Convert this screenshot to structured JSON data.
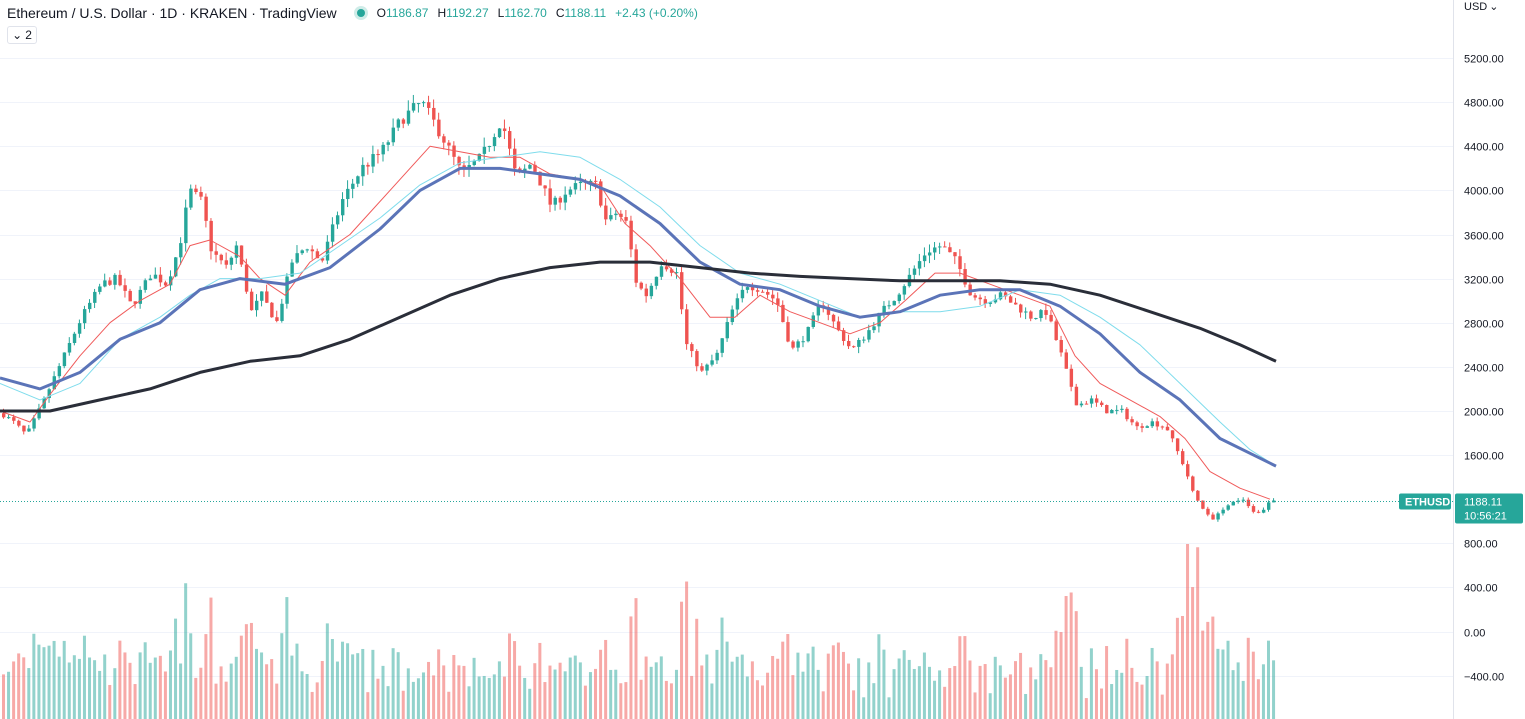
{
  "header": {
    "symbol": "Ethereum / U.S. Dollar · 1D · KRAKEN · TradingView",
    "o_label": "O",
    "o_value": "1186.87",
    "h_label": "H",
    "h_value": "1192.27",
    "l_label": "L",
    "l_value": "1162.70",
    "c_label": "C",
    "c_value": "1188.11",
    "change": "+2.43 (+0.20%)"
  },
  "controls": {
    "collapse_count": "2",
    "currency": "USD",
    "currency_icon": "chevron-down-icon"
  },
  "colors": {
    "up": "#26a69a",
    "down": "#ef5350",
    "ma_red": "#f05a5a",
    "ma_cyan": "#7fdcec",
    "ma_blue": "#5b74b8",
    "ma_black": "#2a2e39",
    "label_bg": "#26a69a"
  },
  "price_label": {
    "ticker": "ETHUSD",
    "price": "1188.11",
    "countdown": "10:56:21"
  },
  "chart_data": {
    "type": "candlestick",
    "title": "Ethereum / U.S. Dollar · 1D · KRAKEN · TradingView",
    "y_axis": {
      "ticks": [
        5200,
        4800,
        4400,
        4000,
        3600,
        3200,
        2800,
        2400,
        2000,
        1600,
        800,
        400,
        0,
        -400
      ],
      "tick_labels": [
        "5200.00",
        "4800.00",
        "4400.00",
        "4000.00",
        "3600.00",
        "3200.00",
        "2800.00",
        "2400.00",
        "2000.00",
        "1600.00",
        "800.00",
        "400.00",
        "0.00",
        "−400.00"
      ],
      "range": [
        -500,
        5450
      ]
    },
    "last_price": 1188.11,
    "price_path": [
      [
        0,
        1980
      ],
      [
        12,
        1900
      ],
      [
        25,
        1780
      ],
      [
        40,
        2050
      ],
      [
        60,
        2450
      ],
      [
        80,
        2850
      ],
      [
        100,
        3150
      ],
      [
        115,
        3200
      ],
      [
        130,
        2950
      ],
      [
        150,
        3250
      ],
      [
        165,
        3150
      ],
      [
        178,
        3500
      ],
      [
        188,
        4000
      ],
      [
        200,
        3900
      ],
      [
        210,
        3450
      ],
      [
        225,
        3300
      ],
      [
        235,
        3500
      ],
      [
        250,
        2900
      ],
      [
        260,
        3050
      ],
      [
        275,
        2800
      ],
      [
        290,
        3350
      ],
      [
        305,
        3500
      ],
      [
        320,
        3350
      ],
      [
        340,
        3900
      ],
      [
        360,
        4200
      ],
      [
        380,
        4350
      ],
      [
        400,
        4650
      ],
      [
        420,
        4800
      ],
      [
        440,
        4500
      ],
      [
        460,
        4150
      ],
      [
        480,
        4300
      ],
      [
        500,
        4650
      ],
      [
        515,
        4100
      ],
      [
        530,
        4250
      ],
      [
        550,
        3850
      ],
      [
        565,
        4000
      ],
      [
        580,
        4050
      ],
      [
        595,
        4050
      ],
      [
        605,
        3700
      ],
      [
        615,
        3800
      ],
      [
        625,
        3700
      ],
      [
        635,
        3150
      ],
      [
        645,
        3050
      ],
      [
        660,
        3350
      ],
      [
        675,
        3250
      ],
      [
        685,
        2600
      ],
      [
        700,
        2350
      ],
      [
        715,
        2500
      ],
      [
        730,
        2900
      ],
      [
        745,
        3150
      ],
      [
        760,
        3100
      ],
      [
        775,
        3000
      ],
      [
        790,
        2550
      ],
      [
        805,
        2700
      ],
      [
        820,
        3000
      ],
      [
        835,
        2750
      ],
      [
        850,
        2550
      ],
      [
        865,
        2700
      ],
      [
        880,
        2900
      ],
      [
        895,
        3050
      ],
      [
        910,
        3250
      ],
      [
        925,
        3450
      ],
      [
        940,
        3500
      ],
      [
        955,
        3350
      ],
      [
        970,
        3050
      ],
      [
        985,
        3000
      ],
      [
        1000,
        3050
      ],
      [
        1015,
        2950
      ],
      [
        1030,
        2850
      ],
      [
        1045,
        2900
      ],
      [
        1060,
        2500
      ],
      [
        1075,
        2050
      ],
      [
        1090,
        2100
      ],
      [
        1105,
        2000
      ],
      [
        1120,
        2000
      ],
      [
        1135,
        1850
      ],
      [
        1150,
        1900
      ],
      [
        1165,
        1850
      ],
      [
        1180,
        1550
      ],
      [
        1195,
        1200
      ],
      [
        1210,
        1000
      ],
      [
        1225,
        1150
      ],
      [
        1240,
        1200
      ],
      [
        1255,
        1050
      ],
      [
        1270,
        1188
      ]
    ],
    "series": [
      {
        "name": "",
        "role": "ma-fast",
        "color": "#f05a5a",
        "points": [
          [
            0,
            2000
          ],
          [
            30,
            1900
          ],
          [
            50,
            2150
          ],
          [
            80,
            2500
          ],
          [
            110,
            2800
          ],
          [
            140,
            3000
          ],
          [
            170,
            3150
          ],
          [
            190,
            3500
          ],
          [
            210,
            3550
          ],
          [
            240,
            3400
          ],
          [
            260,
            3200
          ],
          [
            285,
            3050
          ],
          [
            310,
            3350
          ],
          [
            350,
            3600
          ],
          [
            390,
            4000
          ],
          [
            430,
            4400
          ],
          [
            460,
            4350
          ],
          [
            490,
            4300
          ],
          [
            520,
            4300
          ],
          [
            550,
            4150
          ],
          [
            580,
            4100
          ],
          [
            600,
            4050
          ],
          [
            625,
            3700
          ],
          [
            650,
            3500
          ],
          [
            680,
            3200
          ],
          [
            710,
            2850
          ],
          [
            735,
            2850
          ],
          [
            760,
            3050
          ],
          [
            790,
            2900
          ],
          [
            820,
            2800
          ],
          [
            850,
            2700
          ],
          [
            880,
            2800
          ],
          [
            905,
            3000
          ],
          [
            935,
            3250
          ],
          [
            960,
            3250
          ],
          [
            990,
            3150
          ],
          [
            1020,
            3050
          ],
          [
            1050,
            2950
          ],
          [
            1075,
            2500
          ],
          [
            1100,
            2250
          ],
          [
            1130,
            2100
          ],
          [
            1160,
            1950
          ],
          [
            1185,
            1750
          ],
          [
            1210,
            1450
          ],
          [
            1240,
            1300
          ],
          [
            1270,
            1200
          ]
        ]
      },
      {
        "name": "",
        "role": "ma-cyan",
        "color": "#7fdcec",
        "points": [
          [
            0,
            2250
          ],
          [
            40,
            2100
          ],
          [
            80,
            2250
          ],
          [
            120,
            2650
          ],
          [
            160,
            2850
          ],
          [
            190,
            3050
          ],
          [
            220,
            3200
          ],
          [
            260,
            3200
          ],
          [
            300,
            3250
          ],
          [
            340,
            3500
          ],
          [
            380,
            3750
          ],
          [
            420,
            4050
          ],
          [
            460,
            4250
          ],
          [
            500,
            4300
          ],
          [
            540,
            4350
          ],
          [
            580,
            4300
          ],
          [
            620,
            4100
          ],
          [
            660,
            3850
          ],
          [
            700,
            3500
          ],
          [
            740,
            3250
          ],
          [
            780,
            3150
          ],
          [
            820,
            3000
          ],
          [
            860,
            2850
          ],
          [
            900,
            2900
          ],
          [
            940,
            2900
          ],
          [
            980,
            2950
          ],
          [
            1020,
            3100
          ],
          [
            1060,
            3050
          ],
          [
            1100,
            2850
          ],
          [
            1140,
            2600
          ],
          [
            1180,
            2250
          ],
          [
            1220,
            1900
          ],
          [
            1250,
            1650
          ],
          [
            1276,
            1500
          ]
        ]
      },
      {
        "name": "",
        "role": "ma-blue",
        "color": "#5b74b8",
        "points": [
          [
            0,
            2300
          ],
          [
            40,
            2200
          ],
          [
            80,
            2350
          ],
          [
            120,
            2650
          ],
          [
            160,
            2800
          ],
          [
            200,
            3100
          ],
          [
            240,
            3200
          ],
          [
            285,
            3150
          ],
          [
            330,
            3300
          ],
          [
            380,
            3650
          ],
          [
            420,
            4000
          ],
          [
            460,
            4200
          ],
          [
            500,
            4200
          ],
          [
            540,
            4150
          ],
          [
            580,
            4100
          ],
          [
            620,
            3950
          ],
          [
            660,
            3700
          ],
          [
            700,
            3350
          ],
          [
            740,
            3150
          ],
          [
            780,
            3100
          ],
          [
            820,
            2950
          ],
          [
            860,
            2850
          ],
          [
            900,
            2900
          ],
          [
            940,
            3050
          ],
          [
            980,
            3100
          ],
          [
            1020,
            3100
          ],
          [
            1060,
            2950
          ],
          [
            1100,
            2700
          ],
          [
            1140,
            2350
          ],
          [
            1180,
            2100
          ],
          [
            1220,
            1750
          ],
          [
            1276,
            1500
          ]
        ]
      },
      {
        "name": "",
        "role": "ma-slow",
        "color": "#2a2e39",
        "points": [
          [
            0,
            2000
          ],
          [
            50,
            2000
          ],
          [
            100,
            2100
          ],
          [
            150,
            2200
          ],
          [
            200,
            2350
          ],
          [
            250,
            2450
          ],
          [
            300,
            2500
          ],
          [
            350,
            2650
          ],
          [
            400,
            2850
          ],
          [
            450,
            3050
          ],
          [
            500,
            3200
          ],
          [
            550,
            3300
          ],
          [
            600,
            3350
          ],
          [
            650,
            3350
          ],
          [
            700,
            3300
          ],
          [
            750,
            3250
          ],
          [
            800,
            3220
          ],
          [
            850,
            3200
          ],
          [
            900,
            3180
          ],
          [
            950,
            3180
          ],
          [
            1000,
            3180
          ],
          [
            1050,
            3150
          ],
          [
            1100,
            3050
          ],
          [
            1150,
            2900
          ],
          [
            1200,
            2750
          ],
          [
            1240,
            2600
          ],
          [
            1276,
            2450
          ]
        ]
      }
    ]
  }
}
